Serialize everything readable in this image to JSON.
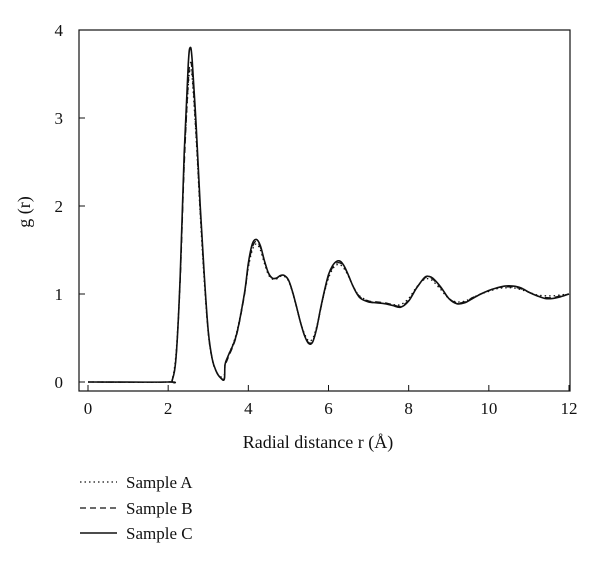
{
  "chart_data": {
    "type": "line",
    "xlabel": "Radial distance r (Å)",
    "ylabel": "g (r)",
    "xlim": [
      0,
      12
    ],
    "ylim": [
      0,
      4
    ],
    "xticks": [
      0,
      2,
      4,
      6,
      8,
      10,
      12
    ],
    "yticks": [
      0,
      1,
      2,
      3,
      4
    ],
    "grid": false,
    "legend_position": "below-left",
    "series": [
      {
        "name": "Sample A",
        "style": "dotted",
        "x": [
          0,
          2.0,
          2.1,
          2.2,
          2.3,
          2.4,
          2.5,
          2.55,
          2.6,
          2.7,
          2.8,
          2.9,
          3.0,
          3.1,
          3.2,
          3.3,
          3.4,
          3.42,
          3.5,
          3.7,
          3.9,
          4.0,
          4.1,
          4.2,
          4.3,
          4.4,
          4.5,
          4.6,
          4.7,
          4.8,
          4.9,
          5.0,
          5.1,
          5.2,
          5.3,
          5.4,
          5.5,
          5.6,
          5.7,
          5.8,
          5.9,
          6.0,
          6.1,
          6.2,
          6.3,
          6.4,
          6.5,
          6.6,
          6.7,
          6.8,
          7.0,
          7.2,
          7.4,
          7.6,
          7.8,
          8.0,
          8.2,
          8.4,
          8.5,
          8.6,
          8.8,
          9.0,
          9.2,
          9.4,
          9.6,
          9.8,
          10.0,
          10.2,
          10.4,
          10.6,
          10.8,
          11.0,
          11.2,
          11.4,
          11.6,
          11.8,
          12.0
        ],
        "y": [
          0,
          0.0,
          0.03,
          0.35,
          1.2,
          2.5,
          3.35,
          3.55,
          3.45,
          2.75,
          1.9,
          1.15,
          0.55,
          0.25,
          0.12,
          0.06,
          0.08,
          0.2,
          0.3,
          0.55,
          1.0,
          1.3,
          1.5,
          1.57,
          1.5,
          1.35,
          1.22,
          1.17,
          1.17,
          1.2,
          1.2,
          1.15,
          1.02,
          0.85,
          0.68,
          0.55,
          0.47,
          0.49,
          0.62,
          0.82,
          1.02,
          1.18,
          1.28,
          1.33,
          1.33,
          1.28,
          1.2,
          1.1,
          1.02,
          0.97,
          0.92,
          0.9,
          0.89,
          0.88,
          0.88,
          0.95,
          1.08,
          1.17,
          1.17,
          1.15,
          1.05,
          0.95,
          0.91,
          0.92,
          0.96,
          1.0,
          1.03,
          1.06,
          1.07,
          1.07,
          1.05,
          1.02,
          0.99,
          0.98,
          0.98,
          0.99,
          1.0
        ]
      },
      {
        "name": "Sample B",
        "style": "dashed",
        "x": [
          0,
          2.0,
          2.1,
          2.2,
          2.3,
          2.4,
          2.5,
          2.55,
          2.6,
          2.7,
          2.8,
          2.9,
          3.0,
          3.1,
          3.2,
          3.3,
          3.4,
          3.42,
          3.5,
          3.7,
          3.9,
          4.0,
          4.1,
          4.2,
          4.3,
          4.4,
          4.5,
          4.6,
          4.7,
          4.8,
          4.9,
          5.0,
          5.1,
          5.2,
          5.3,
          5.4,
          5.5,
          5.6,
          5.7,
          5.8,
          5.9,
          6.0,
          6.1,
          6.2,
          6.3,
          6.4,
          6.5,
          6.6,
          6.7,
          6.8,
          7.0,
          7.2,
          7.4,
          7.6,
          7.8,
          8.0,
          8.2,
          8.4,
          8.5,
          8.6,
          8.8,
          9.0,
          9.2,
          9.4,
          9.6,
          9.8,
          10.0,
          10.2,
          10.4,
          10.6,
          10.8,
          11.0,
          11.2,
          11.4,
          11.6,
          11.8,
          12.0
        ],
        "y": [
          0,
          0.0,
          0.02,
          0.3,
          1.15,
          2.45,
          3.4,
          3.62,
          3.52,
          2.8,
          1.95,
          1.2,
          0.57,
          0.26,
          0.12,
          0.05,
          0.04,
          0.18,
          0.28,
          0.52,
          0.98,
          1.32,
          1.53,
          1.6,
          1.53,
          1.38,
          1.24,
          1.18,
          1.18,
          1.21,
          1.21,
          1.16,
          1.03,
          0.86,
          0.68,
          0.53,
          0.45,
          0.46,
          0.6,
          0.82,
          1.03,
          1.2,
          1.3,
          1.35,
          1.35,
          1.3,
          1.21,
          1.1,
          1.02,
          0.96,
          0.92,
          0.91,
          0.9,
          0.88,
          0.86,
          0.93,
          1.07,
          1.18,
          1.19,
          1.17,
          1.07,
          0.95,
          0.9,
          0.91,
          0.96,
          1.0,
          1.04,
          1.07,
          1.08,
          1.08,
          1.06,
          1.02,
          0.98,
          0.96,
          0.96,
          0.98,
          1.0
        ]
      },
      {
        "name": "Sample C",
        "style": "solid",
        "x": [
          0,
          2.0,
          2.1,
          2.2,
          2.3,
          2.4,
          2.5,
          2.55,
          2.6,
          2.7,
          2.8,
          2.9,
          3.0,
          3.1,
          3.2,
          3.3,
          3.4,
          3.42,
          3.5,
          3.7,
          3.9,
          4.0,
          4.1,
          4.2,
          4.3,
          4.4,
          4.5,
          4.6,
          4.7,
          4.8,
          4.9,
          5.0,
          5.1,
          5.2,
          5.3,
          5.4,
          5.5,
          5.6,
          5.7,
          5.8,
          5.9,
          6.0,
          6.1,
          6.2,
          6.3,
          6.4,
          6.5,
          6.6,
          6.7,
          6.8,
          7.0,
          7.2,
          7.4,
          7.6,
          7.8,
          8.0,
          8.2,
          8.4,
          8.5,
          8.6,
          8.8,
          9.0,
          9.2,
          9.4,
          9.6,
          9.8,
          10.0,
          10.2,
          10.4,
          10.6,
          10.8,
          11.0,
          11.2,
          11.4,
          11.6,
          11.8,
          12.0
        ],
        "y": [
          0,
          0.0,
          0.02,
          0.3,
          1.2,
          2.6,
          3.6,
          3.8,
          3.65,
          2.9,
          2.0,
          1.22,
          0.58,
          0.26,
          0.12,
          0.05,
          0.03,
          0.2,
          0.3,
          0.53,
          1.0,
          1.35,
          1.57,
          1.62,
          1.55,
          1.38,
          1.24,
          1.18,
          1.18,
          1.21,
          1.21,
          1.16,
          1.03,
          0.86,
          0.68,
          0.53,
          0.44,
          0.45,
          0.6,
          0.83,
          1.04,
          1.22,
          1.32,
          1.37,
          1.37,
          1.31,
          1.21,
          1.1,
          1.01,
          0.95,
          0.91,
          0.9,
          0.89,
          0.87,
          0.85,
          0.92,
          1.07,
          1.19,
          1.2,
          1.18,
          1.08,
          0.95,
          0.89,
          0.9,
          0.95,
          1.0,
          1.04,
          1.07,
          1.09,
          1.09,
          1.07,
          1.02,
          0.98,
          0.95,
          0.95,
          0.97,
          1.0
        ]
      }
    ]
  }
}
